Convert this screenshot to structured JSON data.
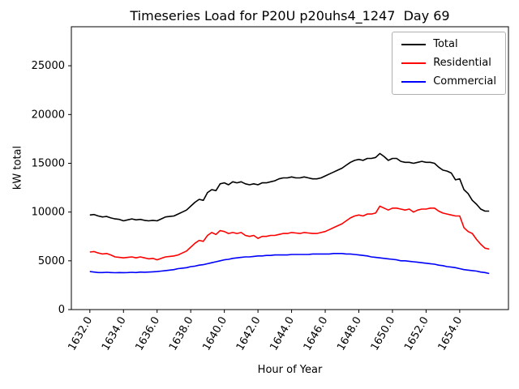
{
  "figure": {
    "title": "Timeseries Load for P20U p20uhs4_1247  Day 69",
    "xlabel": "Hour of Year",
    "ylabel": "kW total"
  },
  "chart_data": {
    "type": "line",
    "title": "Timeseries Load for P20U p20uhs4_1247  Day 69",
    "xlabel": "Hour of Year",
    "ylabel": "kW total",
    "grid": false,
    "legend_position": "upper right",
    "xlim": [
      1630.9,
      1656.9
    ],
    "ylim": [
      0,
      29000
    ],
    "xticks": [
      1632,
      1634,
      1636,
      1638,
      1640,
      1642,
      1644,
      1646,
      1648,
      1650,
      1652,
      1654
    ],
    "xtick_labels": [
      "1632.0",
      "1634.0",
      "1636.0",
      "1638.0",
      "1640.0",
      "1642.0",
      "1644.0",
      "1646.0",
      "1648.0",
      "1650.0",
      "1652.0",
      "1654.0"
    ],
    "yticks": [
      0,
      5000,
      10000,
      15000,
      20000,
      25000
    ],
    "ytick_labels": [
      "0",
      "5000",
      "10000",
      "15000",
      "20000",
      "25000"
    ],
    "x": [
      1632,
      1632.25,
      1632.5,
      1632.75,
      1633,
      1633.25,
      1633.5,
      1633.75,
      1634,
      1634.25,
      1634.5,
      1634.75,
      1635,
      1635.25,
      1635.5,
      1635.75,
      1636,
      1636.25,
      1636.5,
      1636.75,
      1637,
      1637.25,
      1637.5,
      1637.75,
      1638,
      1638.25,
      1638.5,
      1638.75,
      1639,
      1639.25,
      1639.5,
      1639.75,
      1640,
      1640.25,
      1640.5,
      1640.75,
      1641,
      1641.25,
      1641.5,
      1641.75,
      1642,
      1642.25,
      1642.5,
      1642.75,
      1643,
      1643.25,
      1643.5,
      1643.75,
      1644,
      1644.25,
      1644.5,
      1644.75,
      1645,
      1645.25,
      1645.5,
      1645.75,
      1646,
      1646.25,
      1646.5,
      1646.75,
      1647,
      1647.25,
      1647.5,
      1647.75,
      1648,
      1648.25,
      1648.5,
      1648.75,
      1649,
      1649.25,
      1649.5,
      1649.75,
      1650,
      1650.25,
      1650.5,
      1650.75,
      1651,
      1651.25,
      1651.5,
      1651.75,
      1652,
      1652.25,
      1652.5,
      1652.75,
      1653,
      1653.25,
      1653.5,
      1653.75,
      1654,
      1654.25,
      1654.5,
      1654.75,
      1655,
      1655.25,
      1655.5,
      1655.75
    ],
    "series": [
      {
        "name": "Total",
        "color": "#000000",
        "values": [
          9700,
          9750,
          9600,
          9500,
          9550,
          9400,
          9300,
          9250,
          9100,
          9200,
          9300,
          9200,
          9250,
          9150,
          9100,
          9150,
          9100,
          9300,
          9500,
          9550,
          9600,
          9800,
          10000,
          10200,
          10600,
          11000,
          11300,
          11200,
          12000,
          12300,
          12200,
          12900,
          13000,
          12800,
          13100,
          13000,
          13100,
          12900,
          12800,
          12900,
          12800,
          13000,
          13000,
          13100,
          13200,
          13400,
          13500,
          13500,
          13600,
          13500,
          13500,
          13600,
          13500,
          13400,
          13400,
          13500,
          13700,
          13900,
          14100,
          14300,
          14500,
          14800,
          15100,
          15300,
          15400,
          15300,
          15500,
          15500,
          15600,
          16000,
          15700,
          15300,
          15500,
          15500,
          15200,
          15100,
          15100,
          15000,
          15100,
          15200,
          15100,
          15100,
          15000,
          14600,
          14300,
          14200,
          14000,
          13300,
          13400,
          12300,
          11900,
          11200,
          10800,
          10300,
          10100,
          10100
        ]
      },
      {
        "name": "Residential",
        "color": "#ff0000",
        "values": [
          5900,
          5950,
          5800,
          5700,
          5750,
          5600,
          5400,
          5350,
          5300,
          5350,
          5400,
          5300,
          5400,
          5300,
          5200,
          5250,
          5100,
          5250,
          5400,
          5450,
          5500,
          5600,
          5800,
          6000,
          6400,
          6800,
          7100,
          7000,
          7600,
          7900,
          7700,
          8100,
          8000,
          7800,
          7900,
          7800,
          7900,
          7600,
          7500,
          7600,
          7300,
          7500,
          7500,
          7600,
          7600,
          7700,
          7800,
          7800,
          7900,
          7850,
          7800,
          7900,
          7850,
          7800,
          7800,
          7900,
          8000,
          8200,
          8400,
          8600,
          8800,
          9100,
          9400,
          9600,
          9700,
          9600,
          9800,
          9800,
          9900,
          10600,
          10400,
          10200,
          10400,
          10400,
          10300,
          10200,
          10300,
          10000,
          10200,
          10300,
          10300,
          10400,
          10400,
          10100,
          9900,
          9800,
          9700,
          9600,
          9600,
          8400,
          8000,
          7800,
          7200,
          6700,
          6300,
          6200
        ]
      },
      {
        "name": "Commercial",
        "color": "#0000ff",
        "values": [
          3900,
          3850,
          3800,
          3800,
          3820,
          3800,
          3780,
          3800,
          3790,
          3800,
          3820,
          3800,
          3850,
          3830,
          3850,
          3870,
          3900,
          3950,
          4000,
          4050,
          4100,
          4200,
          4250,
          4300,
          4400,
          4450,
          4550,
          4600,
          4700,
          4800,
          4900,
          5000,
          5100,
          5150,
          5250,
          5300,
          5350,
          5400,
          5400,
          5450,
          5500,
          5500,
          5550,
          5550,
          5600,
          5600,
          5600,
          5600,
          5650,
          5650,
          5650,
          5650,
          5650,
          5700,
          5700,
          5700,
          5700,
          5700,
          5750,
          5750,
          5750,
          5700,
          5700,
          5650,
          5600,
          5550,
          5500,
          5400,
          5350,
          5300,
          5250,
          5200,
          5150,
          5100,
          5000,
          5000,
          4950,
          4900,
          4850,
          4800,
          4750,
          4700,
          4650,
          4550,
          4500,
          4400,
          4350,
          4300,
          4200,
          4100,
          4050,
          4000,
          3950,
          3850,
          3800,
          3700
        ]
      }
    ]
  }
}
